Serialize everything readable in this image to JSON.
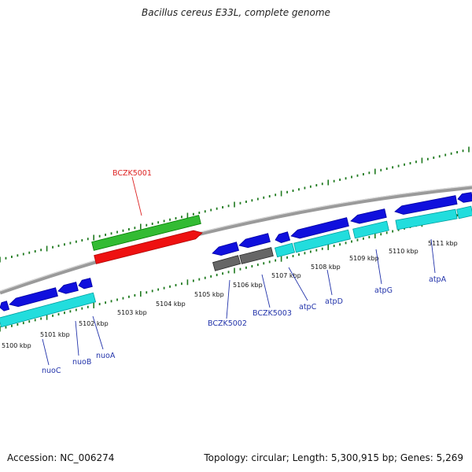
{
  "title": "Bacillus cereus E33L, complete genome",
  "footer": {
    "accession": "Accession: NC_006274",
    "summary": "Topology: circular; Length: 5,300,915 bp; Genes: 5,269"
  },
  "colors": {
    "backbone": "#8a8a8a",
    "tick": "#1f7a1f",
    "kbp_label": "#111111",
    "gene_label": "#2233aa",
    "highlight_label": "#dd2222",
    "cds": "#1010dd",
    "rna_green": "#33bb33",
    "rna_red": "#ee1111",
    "cyan": "#22dddd",
    "gray": "#666666"
  },
  "kbp_labels": [
    "5100 kbp",
    "5101 kbp",
    "5102 kbp",
    "5103 kbp",
    "5104 kbp",
    "5105 kbp",
    "5106 kbp",
    "5107 kbp",
    "5108 kbp",
    "5109 kbp",
    "5110 kbp",
    "5111 kbp"
  ],
  "gene_labels": [
    {
      "text": "BCZK5001",
      "kind": "highlight"
    },
    {
      "text": "nuoC",
      "kind": "gene"
    },
    {
      "text": "nuoB",
      "kind": "gene"
    },
    {
      "text": "nuoA",
      "kind": "gene"
    },
    {
      "text": "BCZK5002",
      "kind": "gene"
    },
    {
      "text": "BCZK5003",
      "kind": "gene"
    },
    {
      "text": "atpC",
      "kind": "gene"
    },
    {
      "text": "atpD",
      "kind": "gene"
    },
    {
      "text": "atpG",
      "kind": "gene"
    },
    {
      "text": "atpA",
      "kind": "gene"
    }
  ]
}
